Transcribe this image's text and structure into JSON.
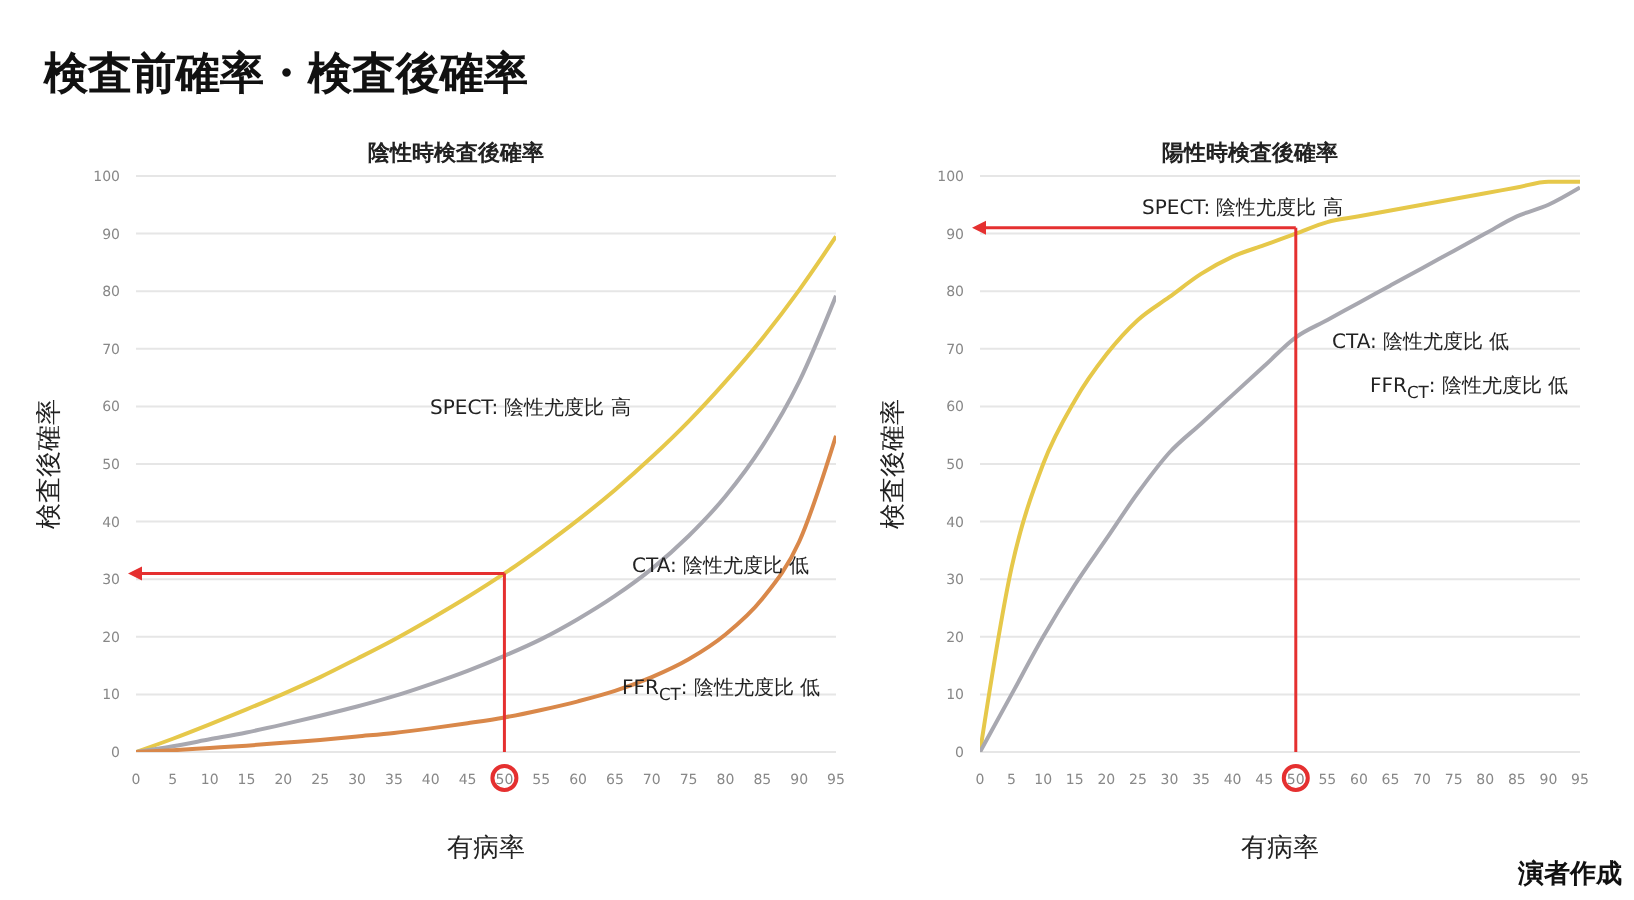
{
  "chart_data": [
    {
      "type": "line",
      "title": "検査前確率・検査後確率",
      "subtitle": "陰性時検査後確率",
      "xlabel": "有病率",
      "ylabel": "検査後確率",
      "categories": [
        "0",
        "5",
        "10",
        "15",
        "20",
        "25",
        "30",
        "35",
        "40",
        "45",
        "50",
        "55",
        "60",
        "65",
        "70",
        "75",
        "80",
        "85",
        "90",
        "95"
      ],
      "series": [
        {
          "color": "#e6c84a",
          "values": [
            0,
            2.3,
            4.8,
            7.4,
            10.1,
            13.0,
            16.2,
            19.5,
            23.1,
            26.9,
            31.0,
            35.5,
            40.3,
            45.5,
            51.2,
            57.4,
            64.3,
            71.8,
            80.2,
            89.5
          ]
        },
        {
          "color": "#a8a8b0",
          "values": [
            0,
            1.0,
            2.2,
            3.4,
            4.8,
            6.3,
            7.9,
            9.7,
            11.8,
            14.1,
            16.7,
            19.6,
            23.1,
            27.1,
            31.8,
            37.5,
            44.4,
            53.1,
            64.3,
            79.2
          ]
        },
        {
          "color": "#d9884a",
          "values": [
            0,
            0.3,
            0.7,
            1.1,
            1.6,
            2.1,
            2.7,
            3.3,
            4.1,
            5.0,
            6.0,
            7.3,
            8.8,
            10.6,
            13.0,
            16.1,
            20.4,
            26.6,
            36.5,
            54.9
          ]
        }
      ],
      "ylim": [
        0,
        100
      ],
      "yticks": [
        0,
        10,
        20,
        30,
        40,
        50,
        60,
        70,
        80,
        90,
        100
      ],
      "grid": "y",
      "legend": false,
      "marker": "none",
      "line_style": "solid",
      "ref_lines": [
        {
          "axis": "x",
          "value": "50",
          "color": "#e53030"
        },
        {
          "axis": "y",
          "value": 31,
          "color": "#e53030"
        }
      ],
      "annotations": [
        "SPECT: 陰性尤度比 高",
        "CTA: 陰性尤度比 低",
        "FFR$_{CT}$: 陰性尤度比 低"
      ]
    },
    {
      "type": "line",
      "title": "陽性時検査後確率",
      "xlabel": "有病率",
      "ylabel": "検査後確率",
      "categories": [
        "0",
        "5",
        "10",
        "15",
        "20",
        "25",
        "30",
        "35",
        "40",
        "45",
        "50",
        "55",
        "60",
        "65",
        "70",
        "75",
        "80",
        "85",
        "90",
        "95"
      ],
      "series": [
        {
          "color": "#e6c84a",
          "values": [
            0,
            32,
            50,
            61,
            69,
            75,
            79,
            83,
            86,
            88,
            90,
            92,
            93,
            94,
            95,
            96,
            97,
            98,
            99,
            99
          ]
        },
        {
          "color": "#a8a8b0",
          "values": [
            0,
            10,
            20,
            29,
            37,
            45,
            52,
            57,
            62,
            67,
            72,
            75,
            78,
            81,
            84,
            87,
            90,
            93,
            95,
            98
          ]
        }
      ],
      "ylim": [
        0,
        100
      ],
      "yticks": [
        0,
        10,
        20,
        30,
        40,
        50,
        60,
        70,
        80,
        90,
        100
      ],
      "grid": "y",
      "legend": false,
      "marker": "none",
      "line_style": "solid",
      "ref_lines": [
        {
          "axis": "x",
          "value": "50",
          "color": "#e53030"
        },
        {
          "axis": "y",
          "value": 91,
          "color": "#e53030"
        }
      ],
      "annotations": [
        "SPECT: 陰性尤度比 高",
        "CTA: 陰性尤度比 低",
        "FFR$_{CT}$: 陰性尤度比 低",
        "演者作成"
      ]
    }
  ]
}
